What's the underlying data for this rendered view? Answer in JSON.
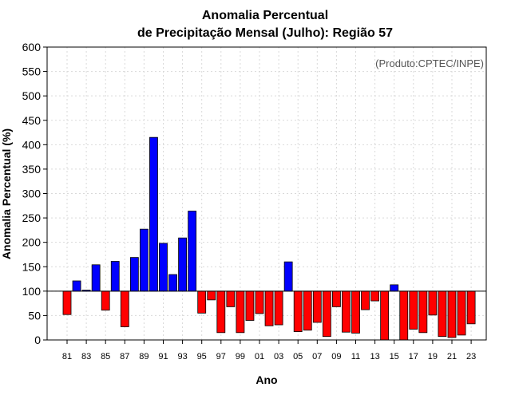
{
  "chart_data": {
    "type": "bar",
    "title_line1": "Anomalia Percentual",
    "title_line2": "de Precipitação Mensal (Julho): Região 57",
    "xlabel": "Ano",
    "ylabel": "Anomalia Percentual (%)",
    "credit": "(Produto:CPTEC/INPE)",
    "ylim": [
      0,
      600
    ],
    "yticks": [
      "0",
      "50",
      "100",
      "150",
      "200",
      "250",
      "300",
      "350",
      "400",
      "450",
      "500",
      "550",
      "600"
    ],
    "baseline": 100,
    "grid": true,
    "colors": {
      "above": "#0000ff",
      "below": "#ff0000",
      "edge": "#000000",
      "grid": "#d9d9d9"
    },
    "categories": [
      "81",
      "82",
      "83",
      "84",
      "85",
      "86",
      "87",
      "88",
      "89",
      "90",
      "91",
      "92",
      "93",
      "94",
      "95",
      "96",
      "97",
      "98",
      "99",
      "00",
      "01",
      "02",
      "03",
      "04",
      "05",
      "06",
      "07",
      "08",
      "09",
      "10",
      "11",
      "12",
      "13",
      "14",
      "15",
      "16",
      "17",
      "18",
      "19",
      "20",
      "21",
      "22",
      "23"
    ],
    "xtick_labels": [
      "81",
      "83",
      "85",
      "87",
      "89",
      "91",
      "93",
      "95",
      "97",
      "99",
      "01",
      "03",
      "05",
      "07",
      "09",
      "11",
      "13",
      "15",
      "17",
      "19",
      "21",
      "23"
    ],
    "values": [
      52,
      121,
      102,
      154,
      61,
      161,
      27,
      169,
      227,
      415,
      198,
      134,
      209,
      264,
      55,
      82,
      15,
      68,
      15,
      40,
      54,
      29,
      31,
      160,
      17,
      20,
      36,
      7,
      68,
      16,
      14,
      62,
      80,
      0,
      113,
      0,
      22,
      15,
      51,
      7,
      5,
      10,
      33
    ]
  }
}
